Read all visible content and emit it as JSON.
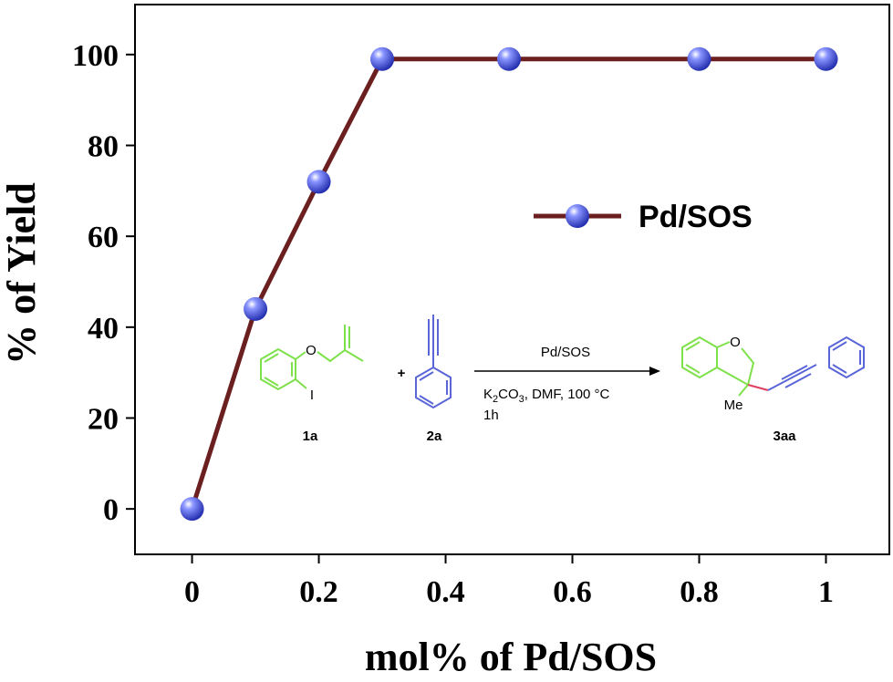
{
  "chart_data": {
    "type": "line",
    "xlabel": "mol% of Pd/SOS",
    "ylabel": "% of Yield",
    "x": [
      0,
      0.1,
      0.2,
      0.3,
      0.5,
      0.8,
      1
    ],
    "series": [
      {
        "name": "Pd/SOS",
        "color": "#6b1f1f",
        "marker_color": "#4a5ae8",
        "values": [
          0,
          44,
          72,
          99,
          99,
          99,
          99
        ]
      }
    ],
    "xlim": [
      -0.09,
      1.1
    ],
    "ylim": [
      -10,
      111
    ],
    "xticks": [
      0,
      0.2,
      0.4,
      0.6,
      0.8,
      1
    ],
    "yticks": [
      0,
      20,
      40,
      60,
      80,
      100
    ],
    "legend": "upper right",
    "scheme": {
      "reactant1": "1a",
      "reactant2": "2a",
      "product": "3aa",
      "plus": "+",
      "catalyst": "Pd/SOS",
      "conditions": [
        "K",
        "2",
        "CO",
        "3",
        ", DMF, 100 °C"
      ],
      "time": "1h",
      "atom_o1": "O",
      "atom_i": "I",
      "atom_o2": "O",
      "atom_me": "Me"
    }
  }
}
